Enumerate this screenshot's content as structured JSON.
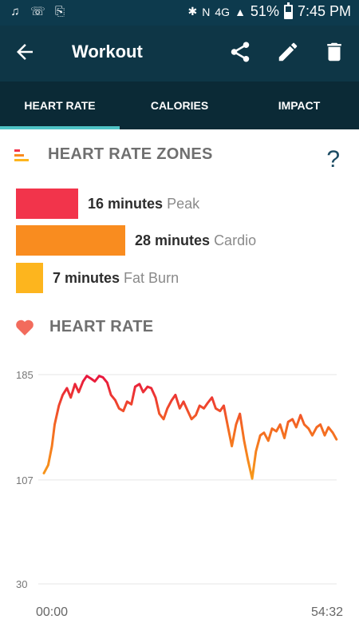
{
  "status_bar": {
    "battery": "51%",
    "time": "7:45 PM",
    "icons": [
      "music-icon",
      "whatsapp-icon",
      "download-icon",
      "bluetooth-icon",
      "nfc-icon",
      "4g-icon",
      "signal-icon",
      "battery-icon"
    ]
  },
  "app_bar": {
    "title": "Workout",
    "icons": [
      "back-arrow-icon",
      "share-icon",
      "edit-icon",
      "delete-icon"
    ]
  },
  "tabs": [
    {
      "label": "HEART RATE",
      "active": true
    },
    {
      "label": "CALORIES",
      "active": false
    },
    {
      "label": "IMPACT",
      "active": false
    }
  ],
  "zones_section": {
    "title": "HEART RATE ZONES",
    "help": "?"
  },
  "zones": [
    {
      "value": "16 minutes",
      "name": "Peak",
      "minutes": 16,
      "color": "#f2344b"
    },
    {
      "value": "28 minutes",
      "name": "Cardio",
      "minutes": 28,
      "color": "#f98c1f"
    },
    {
      "value": "7 minutes",
      "name": "Fat Burn",
      "minutes": 7,
      "color": "#fdb51e"
    }
  ],
  "heart_rate_section": {
    "title": "HEART RATE"
  },
  "chart_data": {
    "type": "line",
    "y_ticks": [
      "185",
      "107",
      "30"
    ],
    "ylim": [
      30,
      185
    ],
    "x_ticks": [
      "00:00",
      "54:32"
    ],
    "xlim_minutes": [
      0,
      54.53
    ],
    "grid": true,
    "series": [
      {
        "x": [
          0,
          0.8,
          1.5,
          2,
          2.8,
          3.5,
          4.3,
          5,
          5.8,
          6.5,
          7.3,
          8,
          8.8,
          9.5,
          10.3,
          11,
          11.8,
          12.5,
          13.3,
          14,
          14.8,
          15.5,
          16.3,
          17,
          17.8,
          18.5,
          19.3,
          20,
          20.8,
          21.5,
          22.3,
          23,
          23.8,
          24.5,
          25.3,
          26,
          26.8,
          27.5,
          28.3,
          29,
          29.8,
          30.5,
          31.3,
          32,
          32.8,
          33.5,
          34.3,
          35,
          35.8,
          36.5,
          37.3,
          38,
          38.8,
          39.5,
          40.3,
          41,
          41.8,
          42.5,
          43.3,
          44,
          44.8,
          45.5,
          46.3,
          47,
          47.8,
          48.5,
          49.3,
          50,
          50.8,
          51.5,
          52.3,
          53,
          53.8,
          54.5
        ],
        "y": [
          112,
          118,
          132,
          148,
          162,
          170,
          175,
          168,
          178,
          172,
          180,
          184,
          182,
          180,
          184,
          183,
          179,
          170,
          166,
          160,
          158,
          165,
          163,
          176,
          178,
          172,
          176,
          175,
          168,
          156,
          152,
          160,
          166,
          170,
          160,
          165,
          158,
          152,
          155,
          162,
          160,
          164,
          168,
          160,
          158,
          162,
          146,
          132,
          148,
          156,
          136,
          122,
          108,
          128,
          140,
          142,
          136,
          145,
          143,
          148,
          138,
          150,
          152,
          146,
          155,
          148,
          145,
          140,
          146,
          148,
          140,
          146,
          142,
          137
        ],
        "color": "#f05a2a"
      }
    ]
  }
}
